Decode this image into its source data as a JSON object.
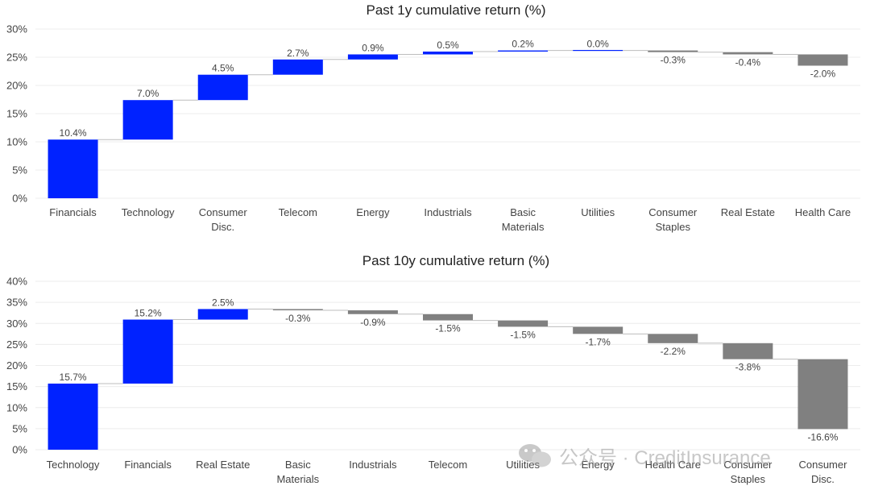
{
  "chart_data": [
    {
      "type": "waterfall",
      "title": "Past 1y cumulative return (%)",
      "ylim": [
        0,
        30
      ],
      "yticks": [
        "0%",
        "5%",
        "10%",
        "15%",
        "20%",
        "25%",
        "30%"
      ],
      "categories": [
        [
          "Financials"
        ],
        [
          "Technology"
        ],
        [
          "Consumer",
          "Disc."
        ],
        [
          "Telecom"
        ],
        [
          "Energy"
        ],
        [
          "Industrials"
        ],
        [
          "Basic",
          "Materials"
        ],
        [
          "Utilities"
        ],
        [
          "Consumer",
          "Staples"
        ],
        [
          "Real Estate"
        ],
        [
          "Health Care"
        ]
      ],
      "values": [
        10.4,
        7.0,
        4.5,
        2.7,
        0.9,
        0.5,
        0.2,
        0.0,
        -0.3,
        -0.4,
        -2.0
      ],
      "labels": [
        "10.4%",
        "7.0%",
        "4.5%",
        "2.7%",
        "0.9%",
        "0.5%",
        "0.2%",
        "0.0%",
        "-0.3%",
        "-0.4%",
        "-2.0%"
      ],
      "grid": true,
      "colors": {
        "positive": "#0022ff",
        "negative": "#808080"
      }
    },
    {
      "type": "waterfall",
      "title": "Past 10y cumulative return (%)",
      "ylim": [
        0,
        40
      ],
      "yticks": [
        "0%",
        "5%",
        "10%",
        "15%",
        "20%",
        "25%",
        "30%",
        "35%",
        "40%"
      ],
      "categories": [
        [
          "Technology"
        ],
        [
          "Financials"
        ],
        [
          "Real Estate"
        ],
        [
          "Basic",
          "Materials"
        ],
        [
          "Industrials"
        ],
        [
          "Telecom"
        ],
        [
          "Utilities"
        ],
        [
          "Energy"
        ],
        [
          "Health Care"
        ],
        [
          "Consumer",
          "Staples"
        ],
        [
          "Consumer",
          "Disc."
        ]
      ],
      "values": [
        15.7,
        15.2,
        2.5,
        -0.3,
        -0.9,
        -1.5,
        -1.5,
        -1.7,
        -2.2,
        -3.8,
        -16.6
      ],
      "labels": [
        "15.7%",
        "15.2%",
        "2.5%",
        "-0.3%",
        "-0.9%",
        "-1.5%",
        "-1.5%",
        "-1.7%",
        "-2.2%",
        "-3.8%",
        "-16.6%"
      ],
      "grid": true,
      "colors": {
        "positive": "#0022ff",
        "negative": "#808080"
      }
    }
  ],
  "watermark": {
    "text": "公众号 · CreditInsurance",
    "icon": "wechat-icon"
  }
}
